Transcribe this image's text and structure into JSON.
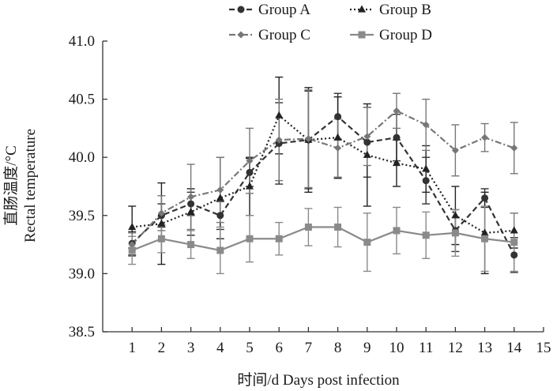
{
  "chart_data": {
    "type": "line",
    "title": "",
    "xlabel": "时间/d Days post infection",
    "ylabel_line1": "直肠温度/°C",
    "ylabel_line2": "Rectal temperature",
    "xlim": [
      0,
      15
    ],
    "ylim": [
      38.5,
      41.0
    ],
    "xticks": [
      1,
      2,
      3,
      4,
      5,
      6,
      7,
      8,
      9,
      10,
      11,
      12,
      13,
      14,
      15
    ],
    "yticks": [
      38.5,
      39.0,
      39.5,
      40.0,
      40.5,
      41.0
    ],
    "ytick_labels": [
      "38.5",
      "39.0",
      "39.5",
      "40.0",
      "40.5",
      "41.0"
    ],
    "grid": false,
    "legend_position": "top-center",
    "x": [
      1,
      2,
      3,
      4,
      5,
      6,
      7,
      8,
      9,
      10,
      11,
      12,
      13,
      14
    ],
    "series": [
      {
        "name": "Group A",
        "color": "#333333",
        "dash": "7,4",
        "marker": "circle",
        "values": [
          39.26,
          39.5,
          39.6,
          39.5,
          39.87,
          40.12,
          40.15,
          40.35,
          40.13,
          40.17,
          39.8,
          39.37,
          39.65,
          39.16
        ],
        "errors": [
          0.1,
          0.1,
          0.1,
          0.12,
          0.12,
          0.35,
          0.42,
          0.2,
          0.3,
          0.2,
          0.2,
          0.18,
          0.08,
          0.15
        ]
      },
      {
        "name": "Group B",
        "color": "#222222",
        "dash": "2,3",
        "marker": "triangle",
        "values": [
          39.4,
          39.43,
          39.53,
          39.65,
          39.75,
          40.36,
          40.15,
          40.17,
          40.02,
          39.95,
          39.9,
          39.5,
          39.35,
          39.37
        ],
        "errors": [
          0.18,
          0.35,
          0.2,
          0.35,
          0.25,
          0.33,
          0.45,
          0.35,
          0.44,
          0.2,
          0.2,
          0.25,
          0.35,
          0.15
        ]
      },
      {
        "name": "Group C",
        "color": "#777777",
        "dash": "8,3,2,3",
        "marker": "diamond",
        "values": [
          39.25,
          39.52,
          39.66,
          39.72,
          39.97,
          40.15,
          40.16,
          40.08,
          40.18,
          40.4,
          40.28,
          40.06,
          40.17,
          40.08
        ],
        "errors": [
          0.1,
          0.15,
          0.28,
          0.28,
          0.28,
          0.35,
          0.42,
          0.25,
          0.25,
          0.15,
          0.22,
          0.22,
          0.12,
          0.22
        ]
      },
      {
        "name": "Group D",
        "color": "#8a8a8a",
        "dash": "",
        "marker": "square",
        "values": [
          39.2,
          39.3,
          39.25,
          39.2,
          39.3,
          39.3,
          39.4,
          39.4,
          39.27,
          39.37,
          39.33,
          39.35,
          39.3,
          39.27
        ],
        "errors": [
          0.12,
          0.12,
          0.12,
          0.2,
          0.2,
          0.14,
          0.16,
          0.17,
          0.25,
          0.2,
          0.2,
          0.2,
          0.28,
          0.25
        ]
      }
    ]
  }
}
